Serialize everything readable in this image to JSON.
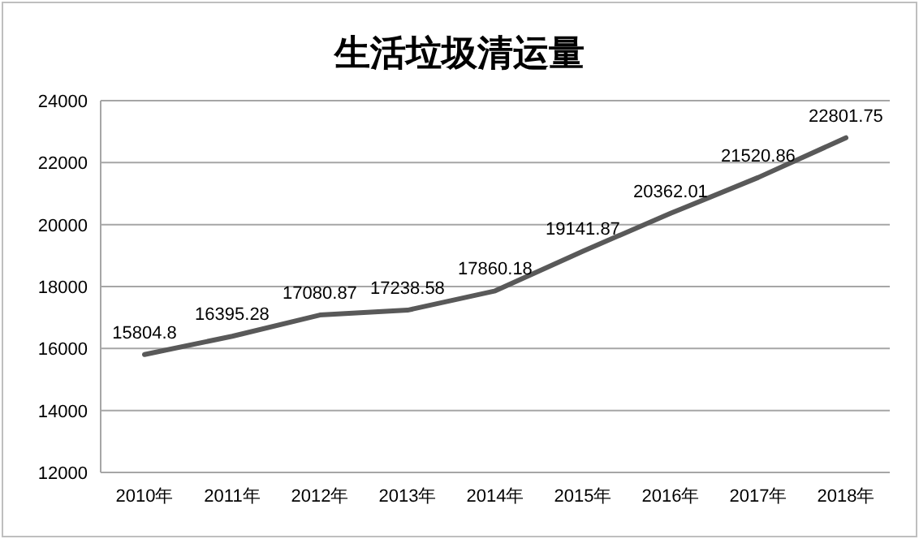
{
  "chart_data": {
    "type": "line",
    "title": "生活垃圾清运量",
    "categories": [
      "2010年",
      "2011年",
      "2012年",
      "2013年",
      "2014年",
      "2015年",
      "2016年",
      "2017年",
      "2018年"
    ],
    "values": [
      15804.8,
      16395.28,
      17080.87,
      17238.58,
      17860.18,
      19141.87,
      20362.01,
      21520.86,
      22801.75
    ],
    "color": "#595959",
    "ylim": [
      12000,
      24000
    ],
    "yticks": [
      12000,
      14000,
      16000,
      18000,
      20000,
      22000,
      24000
    ],
    "grid": "y",
    "data_labels": true
  }
}
